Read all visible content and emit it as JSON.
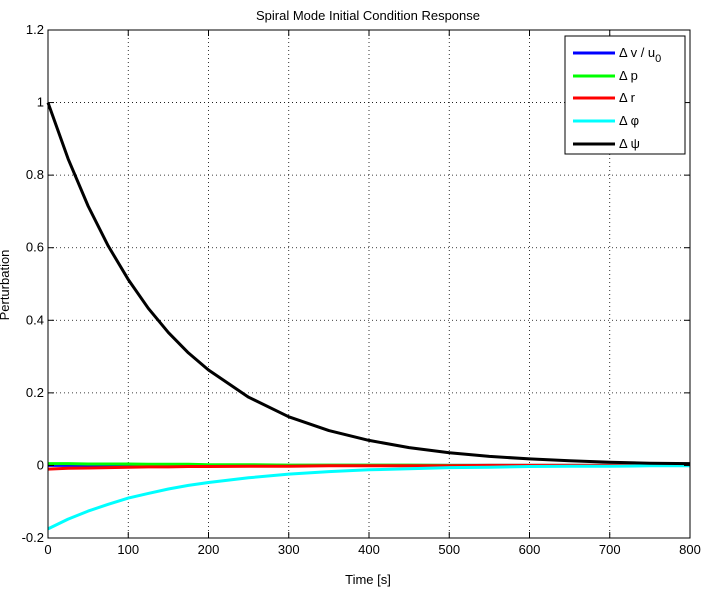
{
  "chart_data": {
    "type": "line",
    "title": "Spiral Mode Initial Condition Response",
    "xlabel": "Time [s]",
    "ylabel": "Perturbation",
    "xlim": [
      0,
      800
    ],
    "ylim": [
      -0.2,
      1.2
    ],
    "xticks": [
      0,
      100,
      200,
      300,
      400,
      500,
      600,
      700,
      800
    ],
    "xtick_labels": [
      "0",
      "100",
      "200",
      "300",
      "400",
      "500",
      "600",
      "700",
      "800"
    ],
    "yticks": [
      -0.2,
      0,
      0.2,
      0.4,
      0.6,
      0.8,
      1,
      1.2
    ],
    "ytick_labels": [
      "-0.2",
      "0",
      "0.2",
      "0.4",
      "0.6",
      "0.8",
      "1",
      "1.2"
    ],
    "grid": true,
    "legend_position": "top-right",
    "x": [
      0,
      25,
      50,
      75,
      100,
      125,
      150,
      175,
      200,
      250,
      300,
      350,
      400,
      450,
      500,
      550,
      600,
      650,
      700,
      750,
      800
    ],
    "series": [
      {
        "name": "Δ v / u",
        "name_subscript": "0",
        "color": "#0000ff",
        "values": [
          0,
          0,
          0,
          0,
          0,
          0,
          0,
          0,
          0,
          0,
          0,
          0,
          0,
          0,
          0,
          0,
          0,
          0,
          0,
          0,
          0
        ]
      },
      {
        "name": "Δ p",
        "color": "#00ff00",
        "values": [
          0.005,
          0.005,
          0.004,
          0.004,
          0.004,
          0.003,
          0.003,
          0.003,
          0.002,
          0.002,
          0.001,
          0.001,
          0.001,
          0.001,
          0,
          0,
          0,
          0,
          0,
          0,
          0
        ]
      },
      {
        "name": "Δ r",
        "color": "#ff0000",
        "values": [
          -0.01,
          -0.008,
          -0.007,
          -0.006,
          -0.005,
          -0.004,
          -0.004,
          -0.003,
          -0.003,
          -0.002,
          -0.002,
          -0.001,
          -0.001,
          -0.001,
          -0.001,
          0,
          0,
          0,
          0,
          0,
          0
        ]
      },
      {
        "name": "Δ φ",
        "color": "#00ffff",
        "values": [
          -0.175,
          -0.148,
          -0.126,
          -0.107,
          -0.09,
          -0.077,
          -0.065,
          -0.055,
          -0.047,
          -0.034,
          -0.024,
          -0.017,
          -0.012,
          -0.009,
          -0.006,
          -0.005,
          -0.003,
          -0.002,
          -0.002,
          -0.001,
          -0.001
        ]
      },
      {
        "name": "Δ ψ",
        "color": "#000000",
        "values": [
          1,
          0.845,
          0.715,
          0.605,
          0.512,
          0.433,
          0.366,
          0.31,
          0.263,
          0.188,
          0.134,
          0.096,
          0.069,
          0.049,
          0.035,
          0.025,
          0.018,
          0.013,
          0.009,
          0.006,
          0.005
        ]
      }
    ]
  }
}
